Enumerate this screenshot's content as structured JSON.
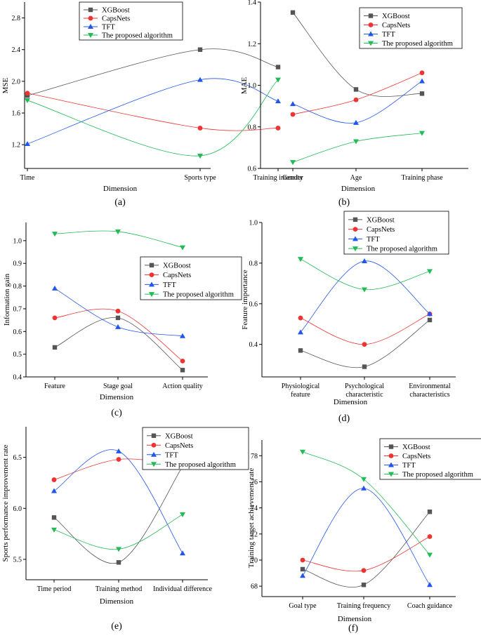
{
  "colors": {
    "XGBoost": "#555555",
    "CapsNets": "#ee3333",
    "TFT": "#2255ee",
    "The proposed algorithm": "#22bb55"
  },
  "markers": {
    "XGBoost": "square",
    "CapsNets": "circle",
    "TFT": "triangle-up",
    "The proposed algorithm": "triangle-down"
  },
  "chart_data": [
    {
      "type": "line",
      "panel_label": "(a)",
      "xlabel": "Dimension",
      "ylabel": "MSE",
      "categories": [
        "Time",
        "Sports type",
        "Training intensity"
      ],
      "ylim": [
        0.9,
        3.0
      ],
      "yticks": [
        1.2,
        1.6,
        2.0,
        2.4,
        2.8
      ],
      "ytick_labels": [
        "1.2",
        "1.6",
        "2.0",
        "2.4",
        "2.8"
      ],
      "legend_position": "top-center",
      "series": [
        {
          "name": "XGBoost",
          "values": [
            1.82,
            2.4,
            2.18
          ]
        },
        {
          "name": "CapsNets",
          "values": [
            1.85,
            1.41,
            1.41
          ]
        },
        {
          "name": "TFT",
          "values": [
            1.21,
            2.02,
            1.75
          ]
        },
        {
          "name": "The proposed algorithm",
          "values": [
            1.76,
            1.06,
            2.02
          ]
        }
      ]
    },
    {
      "type": "line",
      "panel_label": "(b)",
      "xlabel": "Dimension",
      "ylabel": "MAE",
      "categories": [
        "Gender",
        "Age",
        "Training phase"
      ],
      "ylim": [
        0.6,
        1.4
      ],
      "yticks": [
        0.6,
        0.8,
        1.0,
        1.2,
        1.4
      ],
      "ytick_labels": [
        "0.6",
        "0.8",
        "1.0",
        "1.2",
        "1.4"
      ],
      "legend_position": "top-right",
      "series": [
        {
          "name": "XGBoost",
          "values": [
            1.35,
            0.98,
            0.96
          ]
        },
        {
          "name": "CapsNets",
          "values": [
            0.86,
            0.93,
            1.06
          ]
        },
        {
          "name": "TFT",
          "values": [
            0.91,
            0.82,
            1.02
          ]
        },
        {
          "name": "The proposed algorithm",
          "values": [
            0.63,
            0.73,
            0.77
          ]
        }
      ]
    },
    {
      "type": "line",
      "panel_label": "(c)",
      "xlabel": "Dimension",
      "ylabel": "Information gain",
      "categories": [
        "Feature",
        "Stage goal",
        "Action quality"
      ],
      "ylim": [
        0.4,
        1.08
      ],
      "yticks": [
        0.4,
        0.5,
        0.6,
        0.7,
        0.8,
        0.9,
        1.0
      ],
      "ytick_labels": [
        "0.4",
        "0.5",
        "0.6",
        "0.7",
        "0.8",
        "0.9",
        "1.0"
      ],
      "legend_position": "middle-right",
      "series": [
        {
          "name": "XGBoost",
          "values": [
            0.53,
            0.66,
            0.43
          ]
        },
        {
          "name": "CapsNets",
          "values": [
            0.66,
            0.69,
            0.47
          ]
        },
        {
          "name": "TFT",
          "values": [
            0.79,
            0.62,
            0.58
          ]
        },
        {
          "name": "The proposed algorithm",
          "values": [
            1.03,
            1.04,
            0.97
          ]
        }
      ]
    },
    {
      "type": "line",
      "panel_label": "(d)",
      "xlabel": "Dimension",
      "ylabel": "Feature importance",
      "categories": [
        "Physiological\nfeature",
        "Psychological\ncharacteristic",
        "Environmental\ncharacteristics"
      ],
      "ylim": [
        0.24,
        1.0
      ],
      "yticks": [
        0.4,
        0.6,
        0.8,
        1.0
      ],
      "ytick_labels": [
        "0.4",
        "0.6",
        "0.8",
        "1.0"
      ],
      "legend_position": "top-right",
      "series": [
        {
          "name": "XGBoost",
          "values": [
            0.37,
            0.29,
            0.52
          ]
        },
        {
          "name": "CapsNets",
          "values": [
            0.53,
            0.4,
            0.55
          ]
        },
        {
          "name": "TFT",
          "values": [
            0.46,
            0.81,
            0.55
          ]
        },
        {
          "name": "The proposed algorithm",
          "values": [
            0.82,
            0.67,
            0.76
          ]
        }
      ]
    },
    {
      "type": "line",
      "panel_label": "(e)",
      "xlabel": "Dimension",
      "ylabel": "Sports performance improvement rate",
      "categories": [
        "Time period",
        "Training method",
        "Individual difference"
      ],
      "ylim": [
        5.3,
        6.8
      ],
      "yticks": [
        5.5,
        6.0,
        6.5
      ],
      "ytick_labels": [
        "5.5",
        "6.0",
        "6.5"
      ],
      "legend_position": "top-right",
      "series": [
        {
          "name": "XGBoost",
          "values": [
            5.91,
            5.47,
            6.41
          ]
        },
        {
          "name": "CapsNets",
          "values": [
            6.28,
            6.48,
            6.42
          ]
        },
        {
          "name": "TFT",
          "values": [
            6.17,
            6.56,
            5.56
          ]
        },
        {
          "name": "The proposed algorithm",
          "values": [
            5.79,
            5.6,
            5.94
          ]
        }
      ]
    },
    {
      "type": "line",
      "panel_label": "(f)",
      "xlabel": "Dimension",
      "ylabel": "Training target achievement rate",
      "categories": [
        "Goal type",
        "Training frequency",
        "Coach guidance"
      ],
      "ylim": [
        67.2,
        79.2
      ],
      "yticks": [
        68,
        70,
        72,
        74,
        76,
        78
      ],
      "ytick_labels": [
        "68",
        "70",
        "72",
        "74",
        "76",
        "78"
      ],
      "legend_position": "top-right",
      "series": [
        {
          "name": "XGBoost",
          "values": [
            69.3,
            68.1,
            73.7
          ]
        },
        {
          "name": "CapsNets",
          "values": [
            70.0,
            69.2,
            71.8
          ]
        },
        {
          "name": "TFT",
          "values": [
            68.8,
            75.5,
            68.1
          ]
        },
        {
          "name": "The proposed algorithm",
          "values": [
            78.3,
            76.2,
            70.4
          ]
        }
      ]
    }
  ]
}
